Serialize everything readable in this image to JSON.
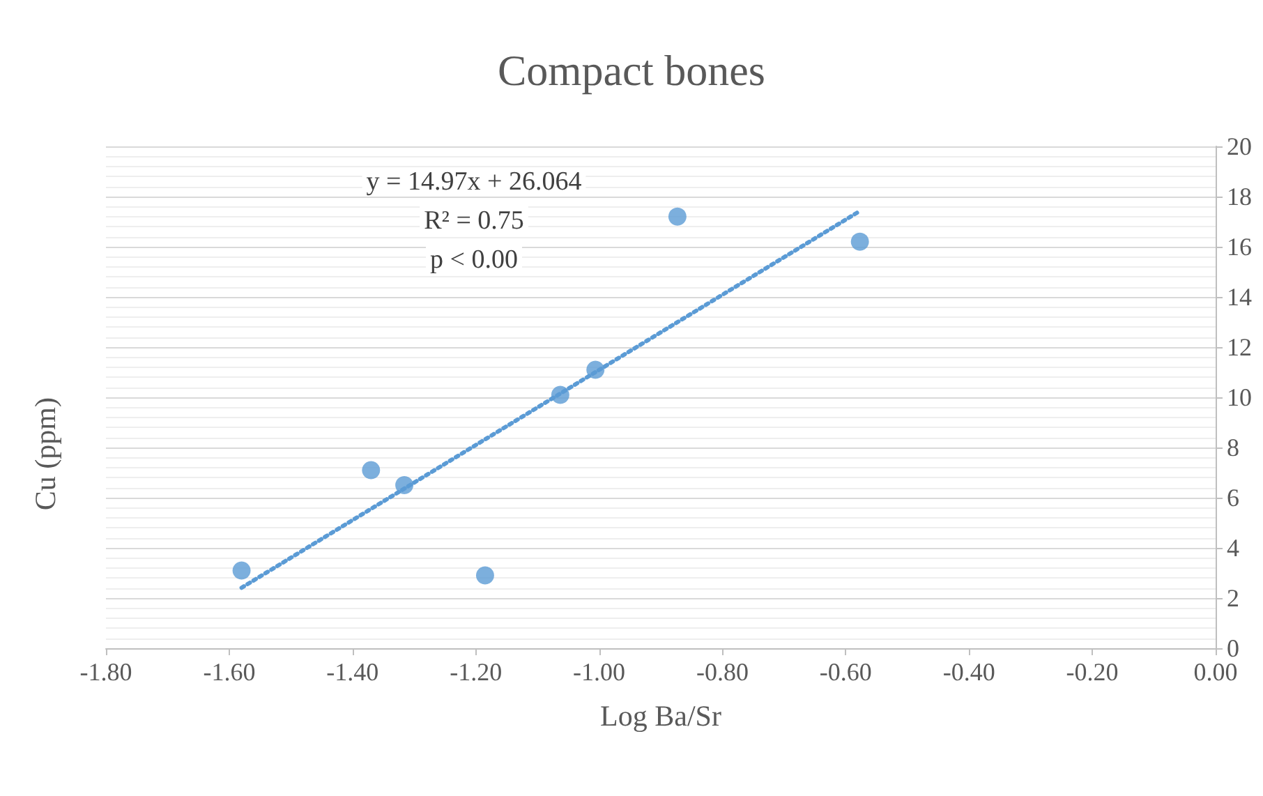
{
  "chart_data": {
    "type": "scatter",
    "title": "Compact bones",
    "xlabel": "Log Ba/Sr",
    "ylabel": "Cu (ppm)",
    "annotations": [
      "y = 14.97x + 26.064",
      "R² = 0.75",
      "p < 0.00"
    ],
    "series": [
      {
        "type": "scatter",
        "color": "#5b9bd5",
        "x": [
          -1.58,
          -1.37,
          -1.316,
          -1.185,
          -1.063,
          -1.006,
          -0.873,
          -0.577
        ],
        "values": [
          3.1,
          7.1,
          6.5,
          2.9,
          10.1,
          11.1,
          17.2,
          16.2
        ],
        "marker": "circle"
      },
      {
        "type": "line",
        "color": "#5b9bd5",
        "x": [
          -1.58,
          -0.58
        ],
        "values": [
          2.41,
          17.38
        ],
        "line_style": "dotted",
        "marker": "none"
      }
    ],
    "xlim": [
      -1.8,
      0
    ],
    "xticks": [
      {
        "value": -1.8,
        "label": "-1.80"
      },
      {
        "value": -1.6,
        "label": "-1.60"
      },
      {
        "value": -1.4,
        "label": "-1.40"
      },
      {
        "value": -1.2,
        "label": "-1.20"
      },
      {
        "value": -1,
        "label": "-1.00"
      },
      {
        "value": -0.8,
        "label": "-0.80"
      },
      {
        "value": -0.6,
        "label": "-0.60"
      },
      {
        "value": -0.4,
        "label": "-0.40"
      },
      {
        "value": -0.2,
        "label": "-0.20"
      },
      {
        "value": 0,
        "label": "0.00"
      }
    ],
    "ylim": [
      0,
      20
    ],
    "yticks": [
      0,
      2,
      4,
      6,
      8,
      10,
      12,
      14,
      16,
      18,
      20
    ],
    "grid": "y"
  }
}
